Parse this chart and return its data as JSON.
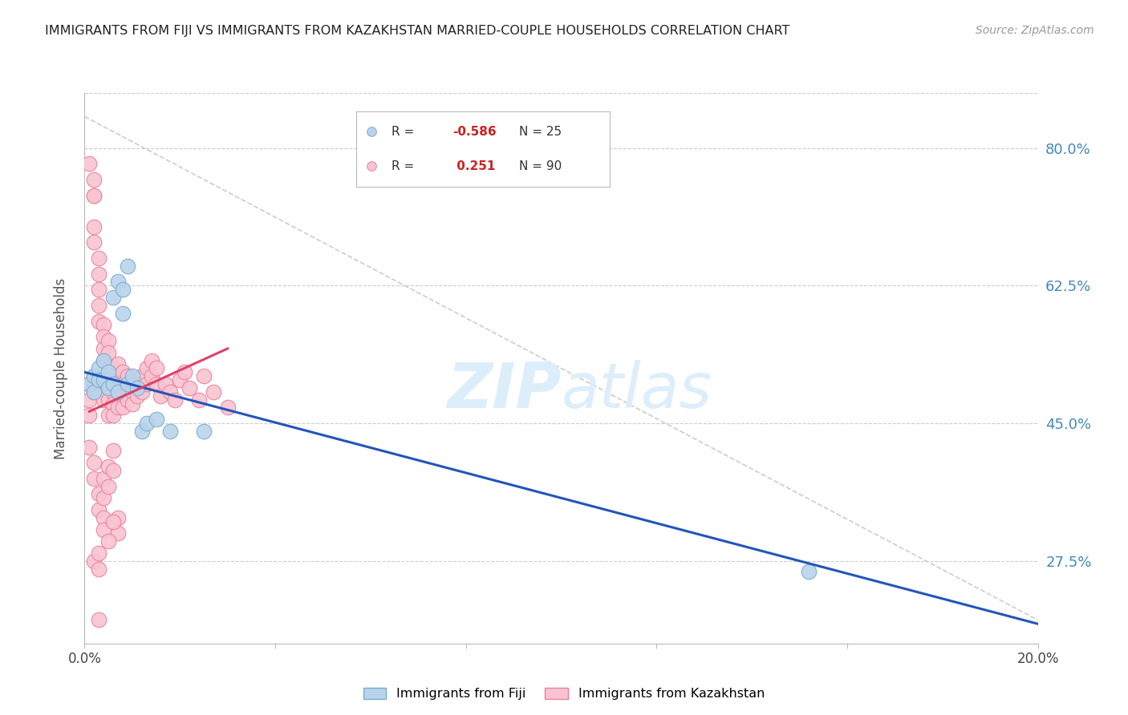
{
  "title": "IMMIGRANTS FROM FIJI VS IMMIGRANTS FROM KAZAKHSTAN MARRIED-COUPLE HOUSEHOLDS CORRELATION CHART",
  "source": "Source: ZipAtlas.com",
  "ylabel": "Married-couple Households",
  "xlim": [
    0.0,
    0.2
  ],
  "ylim": [
    0.17,
    0.87
  ],
  "yticks": [
    0.275,
    0.45,
    0.625,
    0.8
  ],
  "ytick_labels": [
    "27.5%",
    "45.0%",
    "62.5%",
    "80.0%"
  ],
  "xticks": [
    0.0,
    0.04,
    0.08,
    0.12,
    0.16,
    0.2
  ],
  "xtick_labels": [
    "0.0%",
    "",
    "",
    "",
    "",
    "20.0%"
  ],
  "fiji_color": "#b8d4ea",
  "fiji_edge": "#7aaad0",
  "kazakhstan_color": "#f9c4d2",
  "kazakhstan_edge": "#e8809a",
  "watermark_color": "#dceefa",
  "grid_color": "#cccccc",
  "title_color": "#222222",
  "source_color": "#999999",
  "axis_label_color": "#555555",
  "right_tick_color": "#4488bb",
  "fiji_trend_color": "#2255bb",
  "kazakhstan_trend_color": "#dd4466",
  "diag_color": "#cccccc",
  "fiji_scatter_x": [
    0.001,
    0.002,
    0.002,
    0.003,
    0.003,
    0.004,
    0.004,
    0.005,
    0.005,
    0.006,
    0.006,
    0.007,
    0.007,
    0.008,
    0.008,
    0.009,
    0.009,
    0.01,
    0.011,
    0.012,
    0.013,
    0.015,
    0.018,
    0.025,
    0.152
  ],
  "fiji_scatter_y": [
    0.5,
    0.51,
    0.49,
    0.52,
    0.505,
    0.53,
    0.505,
    0.495,
    0.515,
    0.5,
    0.61,
    0.63,
    0.49,
    0.59,
    0.62,
    0.65,
    0.5,
    0.51,
    0.495,
    0.44,
    0.45,
    0.455,
    0.44,
    0.44,
    0.262
  ],
  "kazakhstan_scatter_x": [
    0.001,
    0.001,
    0.001,
    0.002,
    0.002,
    0.002,
    0.002,
    0.002,
    0.003,
    0.003,
    0.003,
    0.003,
    0.003,
    0.003,
    0.004,
    0.004,
    0.004,
    0.004,
    0.004,
    0.004,
    0.005,
    0.005,
    0.005,
    0.005,
    0.005,
    0.005,
    0.006,
    0.006,
    0.006,
    0.006,
    0.006,
    0.007,
    0.007,
    0.007,
    0.007,
    0.008,
    0.008,
    0.008,
    0.008,
    0.009,
    0.009,
    0.009,
    0.01,
    0.01,
    0.01,
    0.011,
    0.011,
    0.012,
    0.012,
    0.013,
    0.013,
    0.014,
    0.014,
    0.015,
    0.015,
    0.016,
    0.017,
    0.018,
    0.019,
    0.02,
    0.021,
    0.022,
    0.024,
    0.025,
    0.027,
    0.03,
    0.001,
    0.002,
    0.002,
    0.003,
    0.003,
    0.004,
    0.004,
    0.005,
    0.005,
    0.006,
    0.006,
    0.007,
    0.007,
    0.002,
    0.003,
    0.003,
    0.004,
    0.004,
    0.005,
    0.006,
    0.001,
    0.002,
    0.002,
    0.003
  ],
  "kazakhstan_scatter_y": [
    0.5,
    0.48,
    0.46,
    0.74,
    0.7,
    0.68,
    0.51,
    0.49,
    0.66,
    0.64,
    0.62,
    0.6,
    0.58,
    0.49,
    0.575,
    0.56,
    0.545,
    0.53,
    0.505,
    0.48,
    0.555,
    0.54,
    0.52,
    0.5,
    0.48,
    0.46,
    0.52,
    0.505,
    0.49,
    0.475,
    0.46,
    0.525,
    0.51,
    0.49,
    0.47,
    0.515,
    0.5,
    0.485,
    0.47,
    0.51,
    0.495,
    0.48,
    0.505,
    0.49,
    0.475,
    0.5,
    0.485,
    0.51,
    0.49,
    0.52,
    0.5,
    0.53,
    0.51,
    0.52,
    0.5,
    0.485,
    0.5,
    0.49,
    0.48,
    0.505,
    0.515,
    0.495,
    0.48,
    0.51,
    0.49,
    0.47,
    0.42,
    0.4,
    0.38,
    0.36,
    0.34,
    0.38,
    0.355,
    0.395,
    0.37,
    0.415,
    0.39,
    0.33,
    0.31,
    0.275,
    0.285,
    0.265,
    0.33,
    0.315,
    0.3,
    0.325,
    0.78,
    0.76,
    0.74,
    0.2
  ],
  "fiji_trend_x": [
    0.0,
    0.2
  ],
  "fiji_trend_y": [
    0.515,
    0.195
  ],
  "kaz_trend_x": [
    0.001,
    0.03
  ],
  "kaz_trend_y": [
    0.465,
    0.545
  ]
}
